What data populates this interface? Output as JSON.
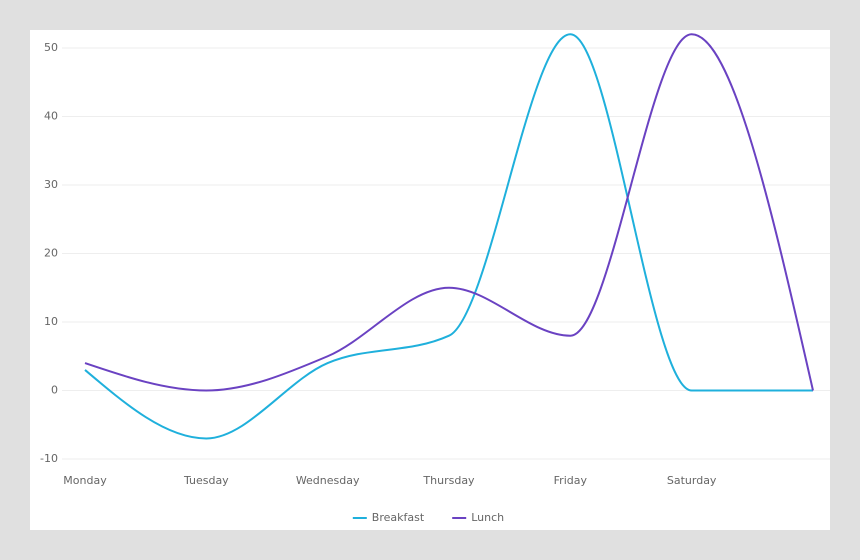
{
  "chart_data": {
    "type": "line",
    "categories": [
      "Monday",
      "Tuesday",
      "Wednesday",
      "Thursday",
      "Friday",
      "Saturday",
      null
    ],
    "series": [
      {
        "name": "Breakfast",
        "color": "#1fb0dc",
        "values": [
          3,
          -7,
          4,
          8,
          52,
          0,
          0
        ]
      },
      {
        "name": "Lunch",
        "color": "#6a42c2",
        "values": [
          4,
          0,
          5,
          15,
          8,
          52,
          0
        ]
      }
    ],
    "ylim": [
      -10,
      50
    ],
    "yticks": [
      -10,
      0,
      10,
      20,
      30,
      40,
      50
    ],
    "grid": true,
    "legend": "bottom"
  }
}
